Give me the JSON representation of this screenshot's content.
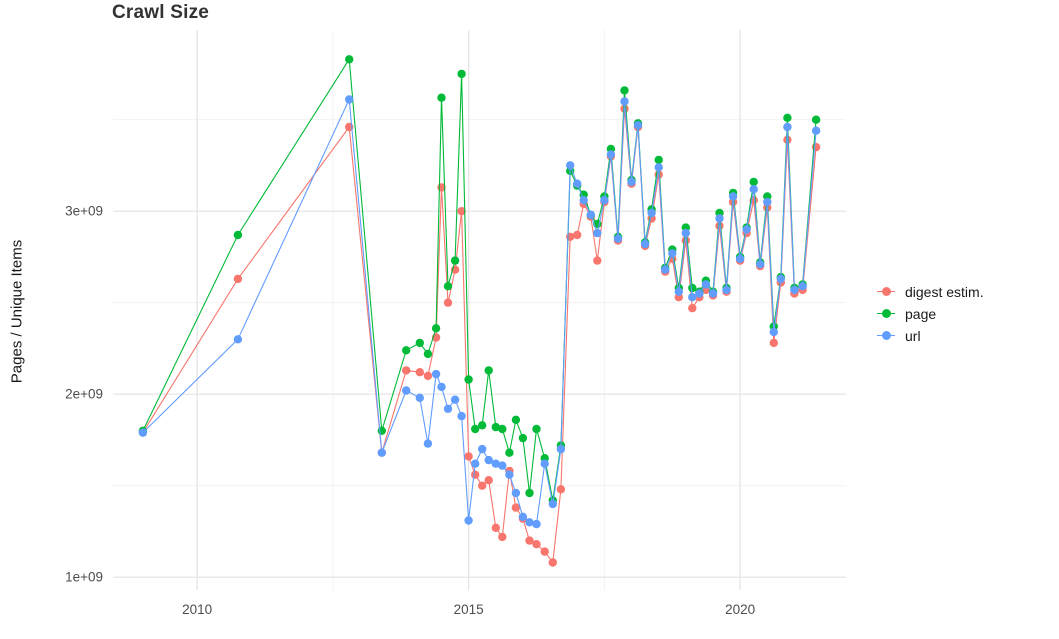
{
  "chart_data": {
    "type": "line",
    "title": "Crawl Size",
    "xlabel": "",
    "ylabel": "Pages / Unique Items",
    "grid": true,
    "legend_position": "right",
    "y_unit_multiplier": 1000000000.0,
    "xlim": [
      2008.45,
      2021.95
    ],
    "ylim": [
      0.93,
      3.99
    ],
    "x_ticks": [
      {
        "value": 2010,
        "label": "2010"
      },
      {
        "value": 2015,
        "label": "2015"
      },
      {
        "value": 2020,
        "label": "2020"
      }
    ],
    "y_ticks": [
      {
        "value": 1.0,
        "label": "1e+09"
      },
      {
        "value": 2.0,
        "label": "2e+09"
      },
      {
        "value": 3.0,
        "label": "3e+09"
      }
    ],
    "x_minor": [
      2012.5,
      2017.5
    ],
    "y_minor": [
      1.5,
      2.5,
      3.5
    ],
    "x": [
      2009.0,
      2010.75,
      2012.8,
      2013.4,
      2013.85,
      2014.1,
      2014.25,
      2014.4,
      2014.5,
      2014.62,
      2014.75,
      2014.87,
      2015.0,
      2015.12,
      2015.25,
      2015.37,
      2015.5,
      2015.62,
      2015.75,
      2015.87,
      2016.0,
      2016.12,
      2016.25,
      2016.4,
      2016.55,
      2016.7,
      2016.87,
      2017.0,
      2017.12,
      2017.25,
      2017.37,
      2017.5,
      2017.62,
      2017.75,
      2017.87,
      2018.0,
      2018.12,
      2018.25,
      2018.37,
      2018.5,
      2018.62,
      2018.75,
      2018.87,
      2019.0,
      2019.12,
      2019.25,
      2019.37,
      2019.5,
      2019.62,
      2019.75,
      2019.87,
      2020.0,
      2020.12,
      2020.25,
      2020.37,
      2020.5,
      2020.62,
      2020.75,
      2020.87,
      2021.0,
      2021.15,
      2021.4
    ],
    "series": [
      {
        "name": "digest estim.",
        "key": "digest-estim",
        "color": "#F8766D",
        "values": [
          1.79,
          2.63,
          3.46,
          1.68,
          2.13,
          2.12,
          2.1,
          2.31,
          3.13,
          2.5,
          2.68,
          3.0,
          1.66,
          1.56,
          1.5,
          1.53,
          1.27,
          1.22,
          1.58,
          1.38,
          1.32,
          1.2,
          1.18,
          1.14,
          1.08,
          1.48,
          2.86,
          2.87,
          3.04,
          2.97,
          2.73,
          3.05,
          3.3,
          2.84,
          3.56,
          3.15,
          3.46,
          2.81,
          2.96,
          3.2,
          2.67,
          2.74,
          2.53,
          2.84,
          2.47,
          2.53,
          2.57,
          2.54,
          2.92,
          2.56,
          3.05,
          2.73,
          2.88,
          3.06,
          2.7,
          3.02,
          2.28,
          2.61,
          3.39,
          2.55,
          2.57,
          3.35
        ]
      },
      {
        "name": "page",
        "key": "page",
        "color": "#00BA38",
        "values": [
          1.8,
          2.87,
          3.83,
          1.8,
          2.24,
          2.28,
          2.22,
          2.36,
          3.62,
          2.59,
          2.73,
          3.75,
          2.08,
          1.81,
          1.83,
          2.13,
          1.82,
          1.81,
          1.68,
          1.86,
          1.76,
          1.46,
          1.81,
          1.65,
          1.42,
          1.72,
          3.22,
          3.14,
          3.09,
          2.98,
          2.93,
          3.08,
          3.34,
          2.86,
          3.66,
          3.17,
          3.48,
          2.83,
          3.01,
          3.28,
          2.69,
          2.79,
          2.58,
          2.91,
          2.58,
          2.56,
          2.62,
          2.56,
          2.99,
          2.58,
          3.1,
          2.75,
          2.91,
          3.16,
          2.72,
          3.08,
          2.37,
          2.64,
          3.51,
          2.58,
          2.6,
          3.5
        ]
      },
      {
        "name": "url",
        "key": "url",
        "color": "#619CFF",
        "values": [
          1.79,
          2.3,
          3.61,
          1.68,
          2.02,
          1.98,
          1.73,
          2.11,
          2.04,
          1.92,
          1.97,
          1.88,
          1.31,
          1.62,
          1.7,
          1.64,
          1.62,
          1.61,
          1.56,
          1.46,
          1.33,
          1.3,
          1.29,
          1.62,
          1.4,
          1.7,
          3.25,
          3.15,
          3.06,
          2.98,
          2.88,
          3.06,
          3.31,
          2.85,
          3.6,
          3.16,
          3.47,
          2.82,
          2.99,
          3.24,
          2.68,
          2.77,
          2.56,
          2.88,
          2.53,
          2.55,
          2.6,
          2.55,
          2.96,
          2.57,
          3.08,
          2.74,
          2.9,
          3.12,
          2.71,
          3.05,
          2.34,
          2.63,
          3.46,
          2.57,
          2.59,
          3.44
        ]
      }
    ]
  }
}
